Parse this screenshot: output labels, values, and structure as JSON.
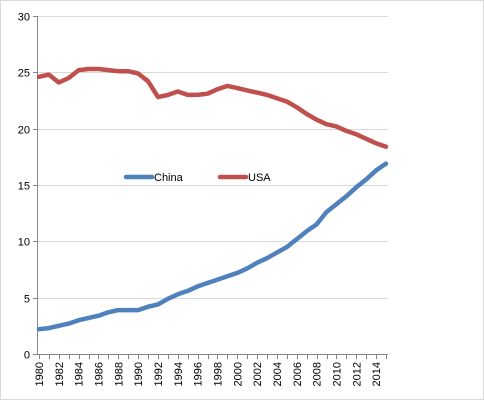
{
  "chart_data": {
    "type": "line",
    "title": "",
    "xlabel": "",
    "ylabel": "",
    "ylim": [
      0,
      30
    ],
    "yticks": [
      0,
      5,
      10,
      15,
      20,
      25,
      30
    ],
    "x": [
      1980,
      1981,
      1982,
      1983,
      1984,
      1985,
      1986,
      1987,
      1988,
      1989,
      1990,
      1991,
      1992,
      1993,
      1994,
      1995,
      1996,
      1997,
      1998,
      1999,
      2000,
      2001,
      2002,
      2003,
      2004,
      2005,
      2006,
      2007,
      2008,
      2009,
      2010,
      2011,
      2012,
      2013,
      2014,
      2015
    ],
    "x_tick_labels": [
      "1980",
      "1982",
      "1984",
      "1986",
      "1988",
      "1990",
      "1992",
      "1994",
      "1996",
      "1998",
      "2000",
      "2002",
      "2004",
      "2006",
      "2008",
      "2010",
      "2012",
      "2014"
    ],
    "grid": "horizontal",
    "legend_position": "middle",
    "series": [
      {
        "name": "China",
        "color": "#4f81bd",
        "values": [
          2.2,
          2.3,
          2.5,
          2.7,
          3.0,
          3.2,
          3.4,
          3.7,
          3.9,
          3.9,
          3.9,
          4.2,
          4.4,
          4.9,
          5.3,
          5.6,
          6.0,
          6.3,
          6.6,
          6.9,
          7.2,
          7.6,
          8.1,
          8.5,
          9.0,
          9.5,
          10.2,
          10.9,
          11.5,
          12.6,
          13.3,
          14.0,
          14.8,
          15.5,
          16.3,
          16.9
        ]
      },
      {
        "name": "USA",
        "color": "#c0504d",
        "values": [
          24.6,
          24.8,
          24.1,
          24.5,
          25.2,
          25.3,
          25.3,
          25.2,
          25.1,
          25.1,
          24.9,
          24.2,
          22.8,
          23.0,
          23.3,
          23.0,
          23.0,
          23.1,
          23.5,
          23.8,
          23.6,
          23.4,
          23.2,
          23.0,
          22.7,
          22.4,
          21.9,
          21.3,
          20.8,
          20.4,
          20.2,
          19.8,
          19.5,
          19.1,
          18.7,
          18.4
        ]
      }
    ]
  }
}
